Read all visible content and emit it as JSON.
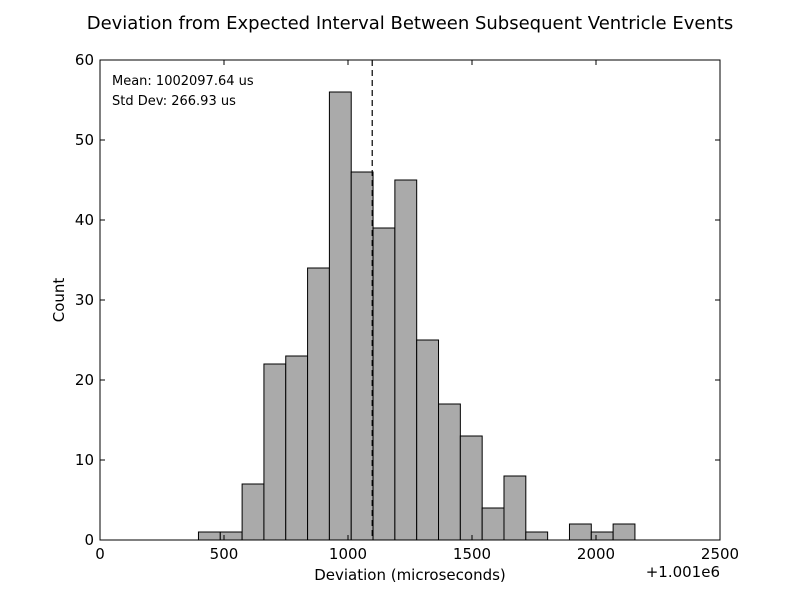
{
  "chart_data": {
    "type": "bar",
    "title": "Deviation from Expected Interval Between Subsequent Ventricle Events",
    "xlabel": "Deviation (microseconds)",
    "ylabel": "Count",
    "x_offset_label": "+1.001e6",
    "xlim": [
      0,
      2500
    ],
    "ylim": [
      0,
      60
    ],
    "x_ticks": [
      0,
      500,
      1000,
      1500,
      2000,
      2500
    ],
    "y_ticks": [
      0,
      10,
      20,
      30,
      40,
      50,
      60
    ],
    "bar_color": "#aaaaaa",
    "grid": false,
    "bins": [
      {
        "x0": 397,
        "x1": 485,
        "count": 1
      },
      {
        "x0": 485,
        "x1": 573,
        "count": 1
      },
      {
        "x0": 573,
        "x1": 661,
        "count": 7
      },
      {
        "x0": 661,
        "x1": 749,
        "count": 22
      },
      {
        "x0": 749,
        "x1": 837,
        "count": 23
      },
      {
        "x0": 837,
        "x1": 925,
        "count": 34
      },
      {
        "x0": 925,
        "x1": 1013,
        "count": 56
      },
      {
        "x0": 1013,
        "x1": 1101,
        "count": 46
      },
      {
        "x0": 1101,
        "x1": 1189,
        "count": 39
      },
      {
        "x0": 1189,
        "x1": 1277,
        "count": 45
      },
      {
        "x0": 1277,
        "x1": 1365,
        "count": 25
      },
      {
        "x0": 1365,
        "x1": 1453,
        "count": 17
      },
      {
        "x0": 1453,
        "x1": 1541,
        "count": 13
      },
      {
        "x0": 1541,
        "x1": 1629,
        "count": 4
      },
      {
        "x0": 1629,
        "x1": 1717,
        "count": 8
      },
      {
        "x0": 1717,
        "x1": 1805,
        "count": 1
      },
      {
        "x0": 1805,
        "x1": 1893,
        "count": 0
      },
      {
        "x0": 1893,
        "x1": 1981,
        "count": 2
      },
      {
        "x0": 1981,
        "x1": 2069,
        "count": 1
      },
      {
        "x0": 2069,
        "x1": 2157,
        "count": 2
      }
    ],
    "mean_line_x": 1097.64,
    "annotations": {
      "mean": "Mean: 1002097.64 us",
      "std": "Std Dev: 266.93 us"
    }
  }
}
